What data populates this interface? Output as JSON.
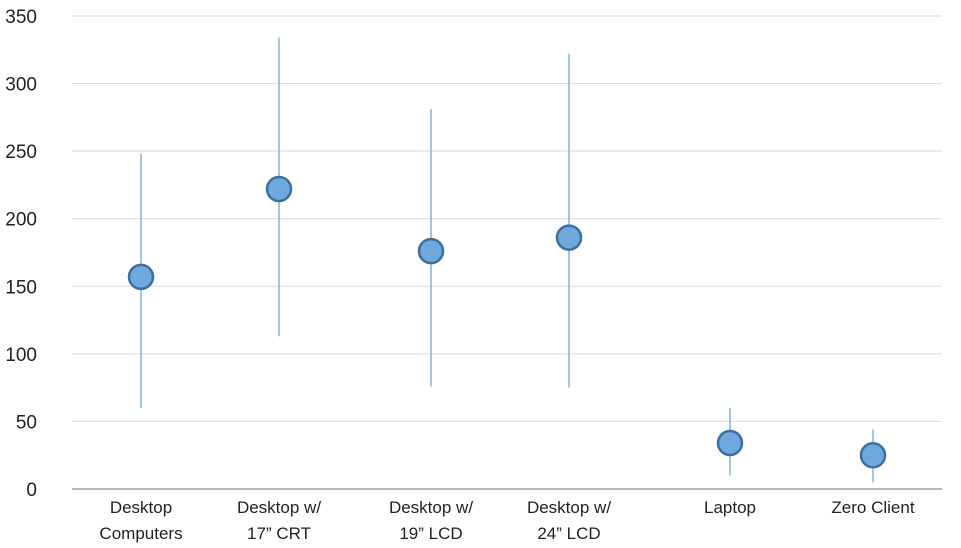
{
  "chart_data": {
    "type": "scatter",
    "subtype": "mean-with-range",
    "title": "",
    "xlabel": "",
    "ylabel": "",
    "ylim": [
      0,
      350
    ],
    "yticks": [
      0,
      50,
      100,
      150,
      200,
      250,
      300,
      350
    ],
    "grid": "horizontal",
    "legend": "none",
    "colors": {
      "marker_fill": "#6fa8dc",
      "marker_stroke": "#3b6f9e",
      "range_line": "#6fa8dc",
      "grid": "#d9d9d9",
      "axis": "#8c8c8c"
    },
    "categories": [
      {
        "lines": [
          "Desktop",
          "Computers"
        ],
        "value": 157,
        "low": 60,
        "high": 248
      },
      {
        "lines": [
          "Desktop w/",
          "17” CRT"
        ],
        "value": 222,
        "low": 113,
        "high": 334
      },
      {
        "lines": [
          "Desktop w/",
          "19” LCD"
        ],
        "value": 176,
        "low": 76,
        "high": 281
      },
      {
        "lines": [
          "Desktop w/",
          "24” LCD"
        ],
        "value": 186,
        "low": 75,
        "high": 322
      },
      {
        "lines": [
          "Laptop"
        ],
        "value": 34,
        "low": 10,
        "high": 60
      },
      {
        "lines": [
          "Zero Client"
        ],
        "value": 25,
        "low": 5,
        "high": 44
      }
    ]
  }
}
